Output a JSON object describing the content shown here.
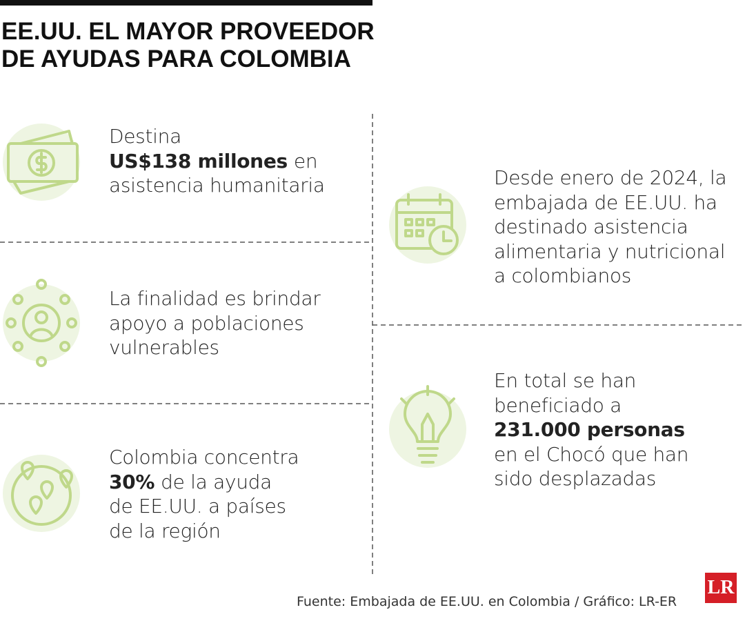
{
  "header": {
    "title": [
      "EE.UU. EL MAYOR PROVEEDOR",
      "DE AYUDAS PARA COLOMBIA"
    ]
  },
  "items": [
    {
      "lines": [
        [
          {
            "text": "Destina"
          }
        ],
        [
          {
            "text": "US$138 millones",
            "bold": true
          },
          {
            "text": "en"
          }
        ],
        [
          {
            "text": "asistencia humanitaria"
          }
        ]
      ]
    },
    {
      "lines": [
        [
          {
            "text": "La finalidad es brindar"
          }
        ],
        [
          {
            "text": "apoyo a poblaciones"
          }
        ],
        [
          {
            "text": "vulnerables"
          }
        ]
      ]
    },
    {
      "lines": [
        [
          {
            "text": "Colombia concentra"
          }
        ],
        [
          {
            "text": "30%",
            "bold": true
          },
          {
            "text": "de la ayuda"
          }
        ],
        [
          {
            "text": "de EE.UU. a países"
          }
        ],
        [
          {
            "text": "de la región"
          }
        ]
      ]
    },
    {
      "lines": [
        [
          {
            "text": "Desde enero de 2024, la"
          }
        ],
        [
          {
            "text": "embajada de EE.UU. ha"
          }
        ],
        [
          {
            "text": "destinado asistencia"
          }
        ],
        [
          {
            "text": "alimentaria y nutricional"
          }
        ],
        [
          {
            "text": "a colombianos"
          }
        ]
      ]
    },
    {
      "lines": [
        [
          {
            "text": "En total se han"
          }
        ],
        [
          {
            "text": "beneficiado a"
          }
        ],
        [
          {
            "text": "231.000 personas",
            "bold": true
          }
        ],
        [
          {
            "text": "en el Chocó que han"
          }
        ],
        [
          {
            "text": "sido desplazadas"
          }
        ]
      ]
    }
  ],
  "footer": {
    "source": "Fuente: Embajada de EE.UU. en Colombia / Gráfico: LR-ER",
    "logo": "LR"
  }
}
